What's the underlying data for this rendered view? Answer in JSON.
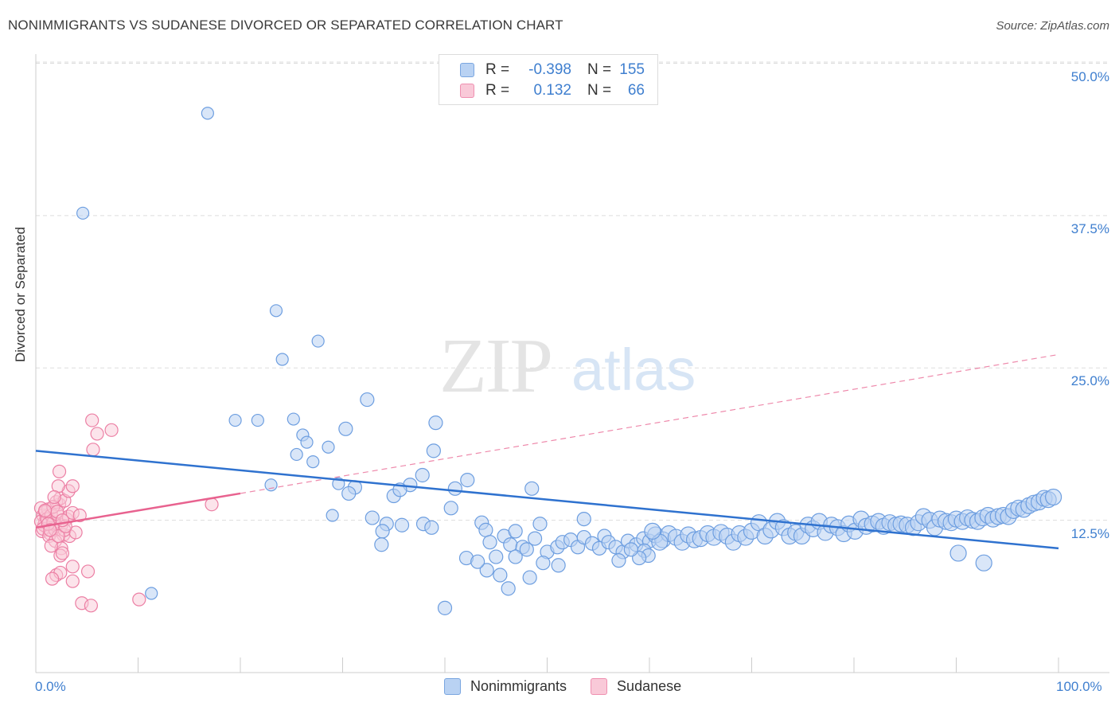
{
  "title": "NONIMMIGRANTS VS SUDANESE DIVORCED OR SEPARATED CORRELATION CHART",
  "source": "Source: ZipAtlas.com",
  "watermark": {
    "zip": "ZIP",
    "atlas": "atlas"
  },
  "legend": {
    "rows": [
      {
        "r_label": "R =",
        "r_value": "-0.398",
        "n_label": "N =",
        "n_value": "155"
      },
      {
        "r_label": "R =",
        "r_value": "0.132",
        "n_label": "N =",
        "n_value": "66"
      }
    ]
  },
  "bottom_legend": {
    "series1": "Nonimmigrants",
    "series2": "Sudanese"
  },
  "colors": {
    "blue_fill": "#b9d2f3",
    "blue_stroke": "#6d9ee0",
    "blue_line": "#2f72cf",
    "pink_fill": "#f9c9d8",
    "pink_stroke": "#ec7fa4",
    "pink_line": "#e8628f",
    "axis_text": "#3f7fcf",
    "grid": "#dddddd"
  },
  "chart_data": {
    "type": "scatter",
    "title": "NONIMMIGRANTS VS SUDANESE DIVORCED OR SEPARATED CORRELATION CHART",
    "xlabel": "",
    "ylabel": "Divorced or Separated",
    "xlim": [
      0,
      100
    ],
    "ylim": [
      0,
      52
    ],
    "x_tick_labels": [
      "0.0%",
      "100.0%"
    ],
    "y_ticks": [
      12.5,
      25.0,
      37.5,
      50.0
    ],
    "y_tick_labels": [
      "12.5%",
      "25.0%",
      "37.5%",
      "50.0%"
    ],
    "grid": "horizontal dashed",
    "series": [
      {
        "name": "Nonimmigrants",
        "color": "#b9d2f3",
        "trend": {
          "x": [
            0,
            100
          ],
          "y": [
            18.2,
            10.2
          ],
          "style": "solid"
        },
        "points": [
          [
            4.6,
            37.7
          ],
          [
            16.8,
            45.9
          ],
          [
            11.3,
            6.5
          ],
          [
            23.5,
            29.7
          ],
          [
            27.6,
            27.2
          ],
          [
            24.1,
            25.7
          ],
          [
            19.5,
            20.7
          ],
          [
            21.7,
            20.7
          ],
          [
            25.2,
            20.8
          ],
          [
            32.4,
            22.4
          ],
          [
            26.1,
            19.5
          ],
          [
            30.3,
            20
          ],
          [
            26.5,
            18.9
          ],
          [
            28.6,
            18.5
          ],
          [
            25.5,
            17.9
          ],
          [
            27.1,
            17.3
          ],
          [
            39.1,
            20.5
          ],
          [
            38.9,
            18.2
          ],
          [
            23.0,
            15.4
          ],
          [
            29.6,
            15.5
          ],
          [
            31.2,
            15.2
          ],
          [
            30.6,
            14.7
          ],
          [
            35.0,
            14.5
          ],
          [
            36.6,
            15.4
          ],
          [
            37.8,
            16.2
          ],
          [
            41.0,
            15.1
          ],
          [
            42.2,
            15.8
          ],
          [
            35.6,
            15
          ],
          [
            40.6,
            13.5
          ],
          [
            48.5,
            15.1
          ],
          [
            29.0,
            12.9
          ],
          [
            32.9,
            12.7
          ],
          [
            34.3,
            12.2
          ],
          [
            35.8,
            12.1
          ],
          [
            37.9,
            12.2
          ],
          [
            38.7,
            11.9
          ],
          [
            33.9,
            11.6
          ],
          [
            33.8,
            10.5
          ],
          [
            43.6,
            12.3
          ],
          [
            44.0,
            11.7
          ],
          [
            44.4,
            10.7
          ],
          [
            45.8,
            11.2
          ],
          [
            46.4,
            10.5
          ],
          [
            46.9,
            11.6
          ],
          [
            47.6,
            10.3
          ],
          [
            48.0,
            10.1
          ],
          [
            48.8,
            11
          ],
          [
            49.3,
            12.2
          ],
          [
            50.0,
            9.9
          ],
          [
            51.0,
            10.3
          ],
          [
            51.5,
            10.7
          ],
          [
            52.3,
            10.9
          ],
          [
            53.0,
            10.3
          ],
          [
            53.6,
            11.1
          ],
          [
            54.4,
            10.6
          ],
          [
            55.1,
            10.2
          ],
          [
            55.6,
            11.2
          ],
          [
            56.0,
            10.7
          ],
          [
            56.7,
            10.3
          ],
          [
            57.4,
            9.9
          ],
          [
            57.9,
            10.8
          ],
          [
            58.7,
            10.5
          ],
          [
            59.4,
            11.0
          ],
          [
            60.0,
            10.8
          ],
          [
            60.6,
            11.3
          ],
          [
            61.3,
            10.9
          ],
          [
            61.9,
            11.4
          ],
          [
            62.6,
            11.1
          ],
          [
            63.2,
            10.7
          ],
          [
            63.8,
            11.3
          ],
          [
            64.4,
            10.9
          ],
          [
            65.0,
            11.0
          ],
          [
            65.7,
            11.4
          ],
          [
            66.3,
            11.1
          ],
          [
            67.0,
            11.5
          ],
          [
            67.6,
            11.2
          ],
          [
            68.2,
            10.7
          ],
          [
            68.8,
            11.4
          ],
          [
            69.4,
            11.1
          ],
          [
            70.0,
            11.6
          ],
          [
            70.7,
            12.3
          ],
          [
            71.3,
            11.2
          ],
          [
            71.9,
            11.7
          ],
          [
            72.5,
            12.4
          ],
          [
            73.1,
            11.9
          ],
          [
            73.7,
            11.2
          ],
          [
            74.3,
            11.5
          ],
          [
            74.9,
            11.2
          ],
          [
            75.5,
            12.1
          ],
          [
            76.0,
            11.8
          ],
          [
            76.6,
            12.4
          ],
          [
            77.2,
            11.5
          ],
          [
            77.8,
            12.1
          ],
          [
            78.4,
            11.9
          ],
          [
            79.0,
            11.4
          ],
          [
            79.5,
            12.2
          ],
          [
            80.1,
            11.6
          ],
          [
            80.7,
            12.6
          ],
          [
            81.2,
            12.0
          ],
          [
            81.8,
            12.2
          ],
          [
            82.4,
            12.4
          ],
          [
            82.9,
            12.0
          ],
          [
            83.5,
            12.3
          ],
          [
            84.1,
            12.1
          ],
          [
            84.6,
            12.2
          ],
          [
            85.2,
            12.1
          ],
          [
            85.8,
            11.9
          ],
          [
            86.3,
            12.3
          ],
          [
            86.8,
            12.8
          ],
          [
            87.4,
            12.5
          ],
          [
            87.9,
            11.9
          ],
          [
            88.4,
            12.6
          ],
          [
            89.0,
            12.4
          ],
          [
            89.5,
            12.3
          ],
          [
            90.0,
            12.6
          ],
          [
            90.6,
            12.4
          ],
          [
            91.1,
            12.7
          ],
          [
            91.6,
            12.5
          ],
          [
            92.1,
            12.4
          ],
          [
            92.6,
            12.7
          ],
          [
            93.1,
            12.9
          ],
          [
            93.6,
            12.6
          ],
          [
            94.1,
            12.8
          ],
          [
            94.6,
            12.9
          ],
          [
            95.1,
            12.8
          ],
          [
            95.6,
            13.3
          ],
          [
            96.1,
            13.5
          ],
          [
            96.6,
            13.4
          ],
          [
            97.1,
            13.7
          ],
          [
            97.6,
            13.9
          ],
          [
            98.1,
            14.0
          ],
          [
            98.6,
            14.3
          ],
          [
            99.0,
            14.2
          ],
          [
            99.5,
            14.4
          ],
          [
            92.7,
            9.0
          ],
          [
            90.2,
            9.8
          ],
          [
            59.5,
            10
          ],
          [
            59.9,
            9.6
          ],
          [
            44.1,
            8.4
          ],
          [
            46.9,
            9.5
          ],
          [
            45.4,
            8.0
          ],
          [
            48.3,
            7.8
          ],
          [
            49.6,
            9.0
          ],
          [
            51.1,
            8.8
          ],
          [
            42.1,
            9.4
          ],
          [
            43.2,
            9.1
          ],
          [
            59.0,
            9.4
          ],
          [
            61.0,
            10.7
          ],
          [
            53.6,
            12.6
          ],
          [
            57.0,
            9.2
          ],
          [
            46.2,
            6.9
          ],
          [
            40.0,
            5.3
          ],
          [
            45.0,
            9.5
          ],
          [
            58.2,
            10.1
          ],
          [
            60.3,
            11.6
          ]
        ]
      },
      {
        "name": "Sudanese",
        "color": "#f9c9d8",
        "trend": {
          "x": [
            0,
            20
          ],
          "y": [
            11.9,
            14.7
          ],
          "style": "solid"
        },
        "trend_extension": {
          "x": [
            20,
            100
          ],
          "y": [
            14.7,
            26.1
          ],
          "style": "dashed"
        },
        "points": [
          [
            0.5,
            13.5
          ],
          [
            0.7,
            12.9
          ],
          [
            0.9,
            12.4
          ],
          [
            1.1,
            11.9
          ],
          [
            1.3,
            12.6
          ],
          [
            1.5,
            13.1
          ],
          [
            0.6,
            11.6
          ],
          [
            0.8,
            12.1
          ],
          [
            1.0,
            12.8
          ],
          [
            1.2,
            13.4
          ],
          [
            1.4,
            11.4
          ],
          [
            1.6,
            12.2
          ],
          [
            0.5,
            12.4
          ],
          [
            0.7,
            11.8
          ],
          [
            0.9,
            13.2
          ],
          [
            1.1,
            12.6
          ],
          [
            1.3,
            11.2
          ],
          [
            1.5,
            12.9
          ],
          [
            1.7,
            12.3
          ],
          [
            1.9,
            11.7
          ],
          [
            2.1,
            13.0
          ],
          [
            2.3,
            13.8
          ],
          [
            2.5,
            12.1
          ],
          [
            2.7,
            11.3
          ],
          [
            3.0,
            12.6
          ],
          [
            3.3,
            11.2
          ],
          [
            2.0,
            14.0
          ],
          [
            2.4,
            14.3
          ],
          [
            2.8,
            14.1
          ],
          [
            3.2,
            14.9
          ],
          [
            2.2,
            15.3
          ],
          [
            2.3,
            16.5
          ],
          [
            3.6,
            15.3
          ],
          [
            5.5,
            20.7
          ],
          [
            6.0,
            19.6
          ],
          [
            7.4,
            19.9
          ],
          [
            5.6,
            18.3
          ],
          [
            1.9,
            10.8
          ],
          [
            2.5,
            10.2
          ],
          [
            2.4,
            9.6
          ],
          [
            3.6,
            8.7
          ],
          [
            2.0,
            8.0
          ],
          [
            2.4,
            8.2
          ],
          [
            3.6,
            7.5
          ],
          [
            1.5,
            10.4
          ],
          [
            1.6,
            7.7
          ],
          [
            2.8,
            11.7
          ],
          [
            3.2,
            12.8
          ],
          [
            2.6,
            9.8
          ],
          [
            5.1,
            8.3
          ],
          [
            1.7,
            13.6
          ],
          [
            2.1,
            13.2
          ],
          [
            1.2,
            12.2
          ],
          [
            0.9,
            13.3
          ],
          [
            4.5,
            5.7
          ],
          [
            5.4,
            5.5
          ],
          [
            10.1,
            6.0
          ],
          [
            17.2,
            13.8
          ],
          [
            3.6,
            13.1
          ],
          [
            4.3,
            12.9
          ],
          [
            1.8,
            14.4
          ],
          [
            2.2,
            11.2
          ],
          [
            3.9,
            11.5
          ],
          [
            2.9,
            12.0
          ],
          [
            2.6,
            12.5
          ],
          [
            1.4,
            11.7
          ]
        ]
      }
    ]
  }
}
